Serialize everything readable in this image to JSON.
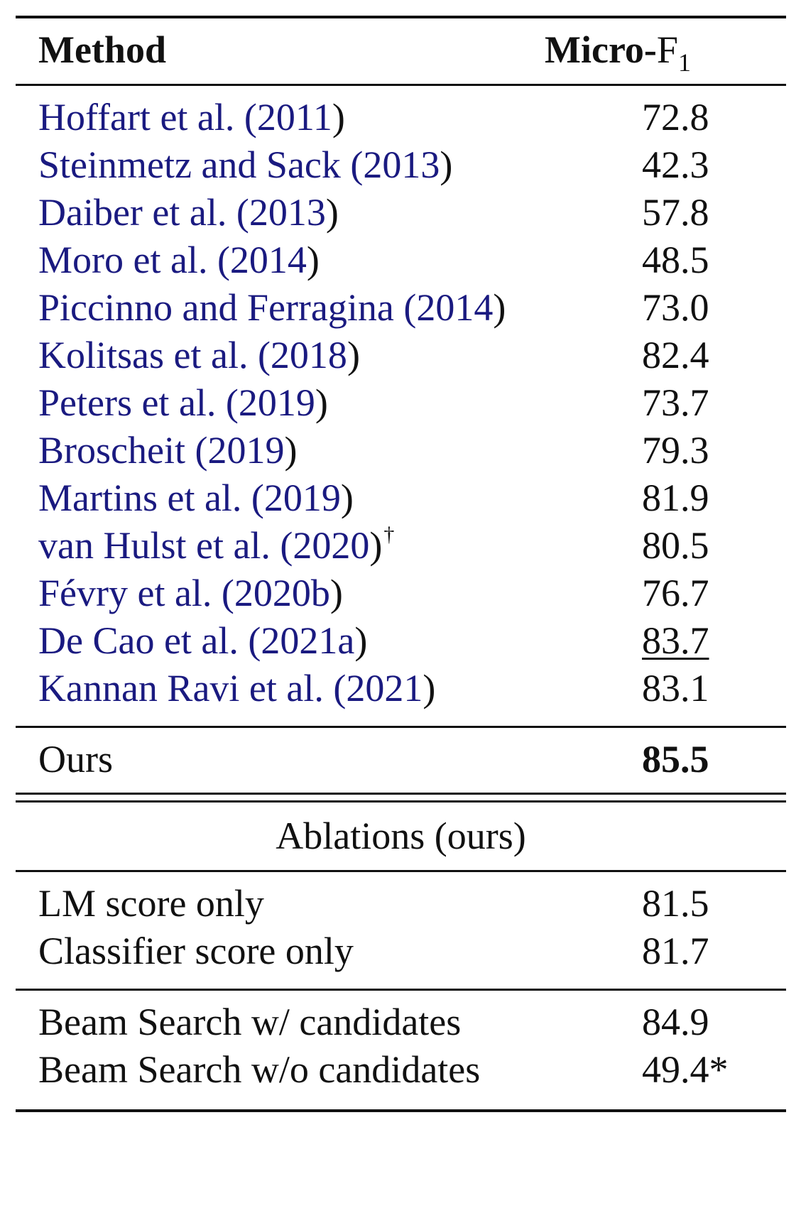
{
  "header": {
    "method": "Method",
    "score_prefix": "Micro-",
    "score_letter": "F",
    "score_sub": "1"
  },
  "baselines": [
    {
      "citation": "Hoffart et al. (2011",
      "close": ")",
      "marker": "",
      "score": "72.8"
    },
    {
      "citation": "Steinmetz and Sack (2013",
      "close": ")",
      "marker": "",
      "score": "42.3"
    },
    {
      "citation": "Daiber et al. (2013",
      "close": ")",
      "marker": "",
      "score": "57.8"
    },
    {
      "citation": "Moro et al. (2014",
      "close": ")",
      "marker": "",
      "score": "48.5"
    },
    {
      "citation": "Piccinno and Ferragina (2014",
      "close": ")",
      "marker": "",
      "score": "73.0"
    },
    {
      "citation": "Kolitsas et al. (2018",
      "close": ")",
      "marker": "",
      "score": "82.4"
    },
    {
      "citation": "Peters et al. (2019",
      "close": ")",
      "marker": "",
      "score": "73.7"
    },
    {
      "citation": "Broscheit (2019",
      "close": ")",
      "marker": "",
      "score": "79.3"
    },
    {
      "citation": "Martins et al. (2019",
      "close": ")",
      "marker": "",
      "score": "81.9"
    },
    {
      "citation": "van Hulst et al. (2020",
      "close": ")",
      "marker": "†",
      "score": "80.5"
    },
    {
      "citation": "Févry et al. (2020b",
      "close": ")",
      "marker": "",
      "score": "76.7"
    },
    {
      "citation": "De Cao et al. (2021a",
      "close": ")",
      "marker": "",
      "score": "83.7"
    },
    {
      "citation": "Kannan Ravi et al. (2021",
      "close": ")",
      "marker": "",
      "score": "83.1"
    }
  ],
  "ours": {
    "method": "Ours",
    "score": "85.5"
  },
  "ablations_title": "Ablations (ours)",
  "ablations_group1": [
    {
      "method": "LM score only",
      "score": "81.5"
    },
    {
      "method": "Classifier score only",
      "score": "81.7"
    }
  ],
  "ablations_group2": [
    {
      "method": "Beam Search w/ candidates",
      "score": "84.9"
    },
    {
      "method": "Beam Search w/o candidates",
      "score": "49.4*"
    }
  ]
}
